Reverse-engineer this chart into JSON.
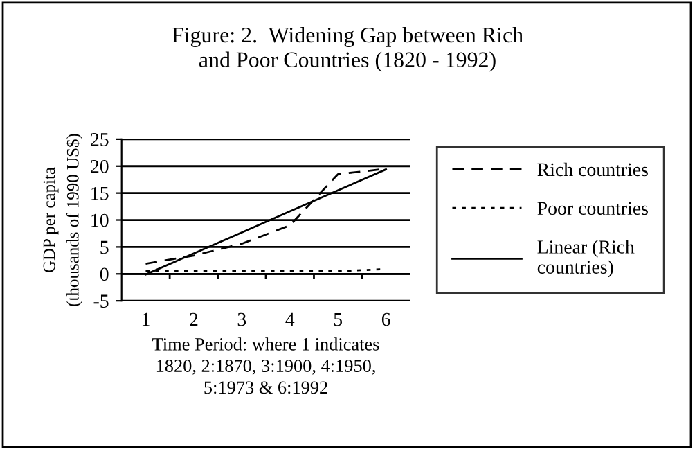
{
  "chart_data": {
    "type": "line",
    "title": "Figure: 2.  Widening Gap between Rich\nand Poor Countries (1820 - 1992)",
    "xlabel": "Time Period: where 1 indicates\n1820, 2:1870, 3:1900, 4:1950,\n5:1973 & 6:1992",
    "ylabel": "GDP per capita\n(thousands of 1990 US$)",
    "categories": [
      "1",
      "2",
      "3",
      "4",
      "5",
      "6"
    ],
    "series": [
      {
        "name": "Rich countries",
        "color": "#000000",
        "line_style": "dashed",
        "values": [
          1.9,
          3.4,
          5.6,
          9,
          18.5,
          19.5
        ]
      },
      {
        "name": "Poor countries",
        "color": "#000000",
        "line_style": "dotted",
        "values": [
          0.5,
          0.5,
          0.5,
          0.5,
          0.5,
          0.9
        ]
      },
      {
        "name": "Linear (Rich\ncountries)",
        "color": "#000000",
        "line_style": "solid",
        "values": [
          -0.1,
          3.8,
          7.7,
          11.6,
          15.5,
          19.4
        ]
      }
    ],
    "ylim": [
      -5,
      25
    ],
    "yticks": [
      -5,
      0,
      5,
      10,
      15,
      20,
      25
    ],
    "grid": "y",
    "legend": "right",
    "marker": "none"
  }
}
